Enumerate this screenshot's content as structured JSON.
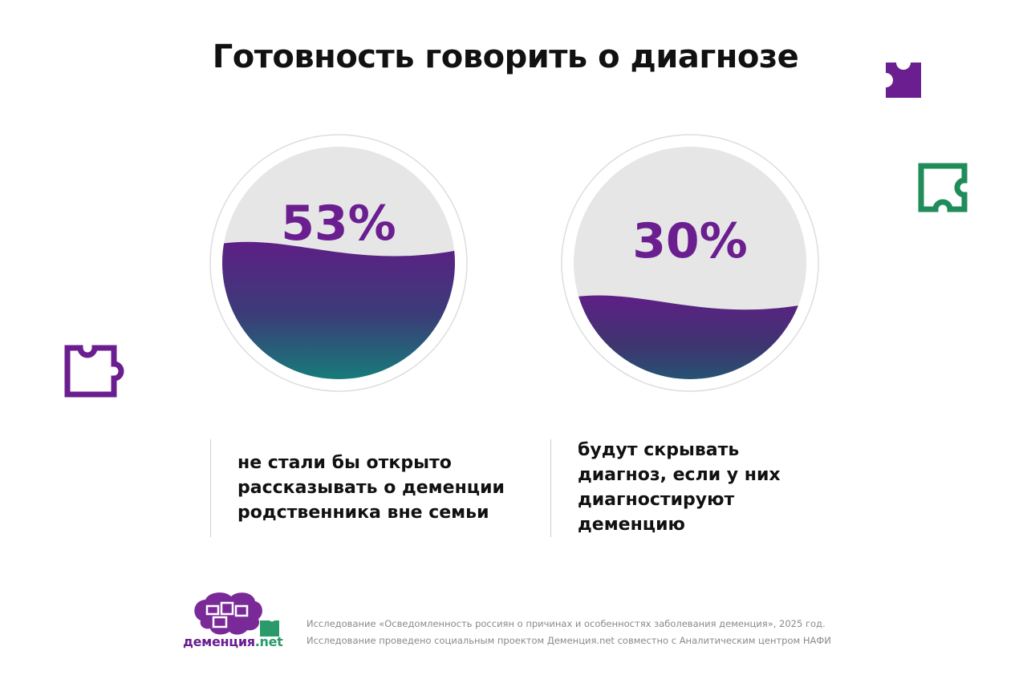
{
  "page": {
    "title": "Готовность говорить о диагнозе"
  },
  "chart_data": {
    "type": "gauge",
    "items": [
      {
        "value": 53,
        "label": "53%",
        "caption": "не стали бы открыто\nрассказывать о деменции\nродственника вне семьи"
      },
      {
        "value": 30,
        "label": "30%",
        "caption": "будут скрывать\nдиагноз, если у них\nдиагностируют\nдеменцию"
      }
    ],
    "colors": {
      "empty": "#e6e6e6",
      "fill_top": "#5e1f86",
      "fill_mid": "#3b3c78",
      "fill_bottom": "#12837a",
      "percent_text": "#6b1e8f"
    }
  },
  "logo": {
    "name": "деменция",
    "suffix": ".net"
  },
  "source": {
    "line1": "Исследование «Осведомленность россиян о причинах и особенностях заболевания деменция», 2025 год.",
    "line2": "Исследование проведено социальным проектом Деменция.net совместно с Аналитическим центром НАФИ"
  },
  "decor": {
    "purple": "#6b1e8f",
    "green": "#1f8c5a"
  }
}
